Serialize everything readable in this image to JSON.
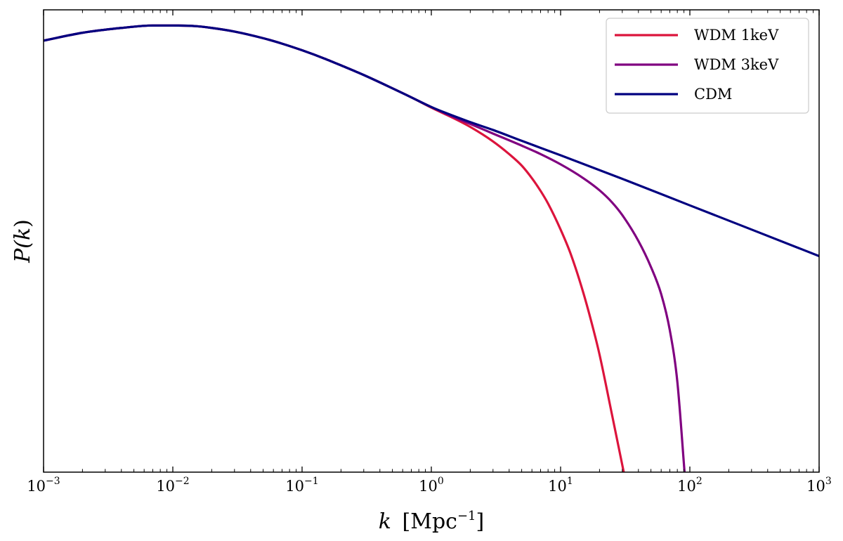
{
  "chart_data": {
    "type": "line",
    "title": "",
    "xlabel": "k [Mpc^-1]",
    "ylabel": "P(k)",
    "x_scale": "log",
    "y_scale": "log",
    "xlim": [
      0.001,
      1000
    ],
    "ylim": [
      -7.4,
      0.26
    ],
    "y_ticks_shown": false,
    "grid": false,
    "legend_position": "top-right",
    "x_ticks": [
      {
        "base": "10",
        "exp": "−3",
        "value": 0.001
      },
      {
        "base": "10",
        "exp": "−2",
        "value": 0.01
      },
      {
        "base": "10",
        "exp": "−1",
        "value": 0.1
      },
      {
        "base": "10",
        "exp": "0",
        "value": 1
      },
      {
        "base": "10",
        "exp": "1",
        "value": 10
      },
      {
        "base": "10",
        "exp": "2",
        "value": 100
      },
      {
        "base": "10",
        "exp": "3",
        "value": 1000
      }
    ],
    "x_label_parts": {
      "var": "k",
      "unit": "[Mpc",
      "unit_exp": "−1",
      "close": "]"
    },
    "y_label_parts": {
      "func": "P(",
      "var": "k",
      "close": ")"
    },
    "series": [
      {
        "name": "WDM 1keV",
        "color": "#dc143c",
        "x": [
          0.001,
          0.002,
          0.004,
          0.007,
          0.01,
          0.015,
          0.02,
          0.03,
          0.05,
          0.07,
          0.1,
          0.15,
          0.2,
          0.3,
          0.5,
          0.7,
          1,
          1.5,
          2,
          3,
          4,
          5,
          6,
          7,
          8,
          10,
          12,
          15,
          18,
          20,
          25,
          30.8
        ],
        "y": [
          -0.25,
          -0.12,
          -0.04,
          0.0,
          0.0,
          -0.01,
          -0.04,
          -0.1,
          -0.21,
          -0.3,
          -0.41,
          -0.55,
          -0.66,
          -0.82,
          -1.04,
          -1.19,
          -1.36,
          -1.54,
          -1.68,
          -1.92,
          -2.13,
          -2.32,
          -2.53,
          -2.74,
          -2.95,
          -3.38,
          -3.79,
          -4.43,
          -5.05,
          -5.45,
          -6.45,
          -7.4
        ]
      },
      {
        "name": "WDM 3keV",
        "color": "#800080",
        "x": [
          0.001,
          0.002,
          0.004,
          0.007,
          0.01,
          0.015,
          0.02,
          0.03,
          0.05,
          0.07,
          0.1,
          0.15,
          0.2,
          0.3,
          0.5,
          0.7,
          1,
          1.5,
          2,
          3,
          5,
          7,
          10,
          15,
          20,
          25,
          30,
          40,
          50,
          60,
          70,
          80,
          91
        ],
        "y": [
          -0.25,
          -0.12,
          -0.04,
          0.0,
          0.0,
          -0.01,
          -0.04,
          -0.1,
          -0.21,
          -0.3,
          -0.41,
          -0.55,
          -0.66,
          -0.82,
          -1.04,
          -1.19,
          -1.35,
          -1.52,
          -1.63,
          -1.79,
          -1.99,
          -2.13,
          -2.3,
          -2.53,
          -2.73,
          -2.93,
          -3.14,
          -3.57,
          -4.0,
          -4.45,
          -5.05,
          -5.9,
          -7.4
        ]
      },
      {
        "name": "CDM",
        "color": "#000080",
        "x": [
          0.001,
          0.002,
          0.004,
          0.007,
          0.01,
          0.015,
          0.02,
          0.03,
          0.05,
          0.07,
          0.1,
          0.15,
          0.2,
          0.3,
          0.5,
          0.7,
          1,
          2,
          3,
          5,
          10,
          30,
          100,
          300,
          1000
        ],
        "y": [
          -0.25,
          -0.12,
          -0.04,
          0.0,
          0.0,
          -0.01,
          -0.04,
          -0.1,
          -0.21,
          -0.3,
          -0.41,
          -0.55,
          -0.66,
          -0.82,
          -1.04,
          -1.19,
          -1.35,
          -1.6,
          -1.73,
          -1.91,
          -2.15,
          -2.54,
          -2.98,
          -3.38,
          -3.82
        ]
      }
    ]
  }
}
